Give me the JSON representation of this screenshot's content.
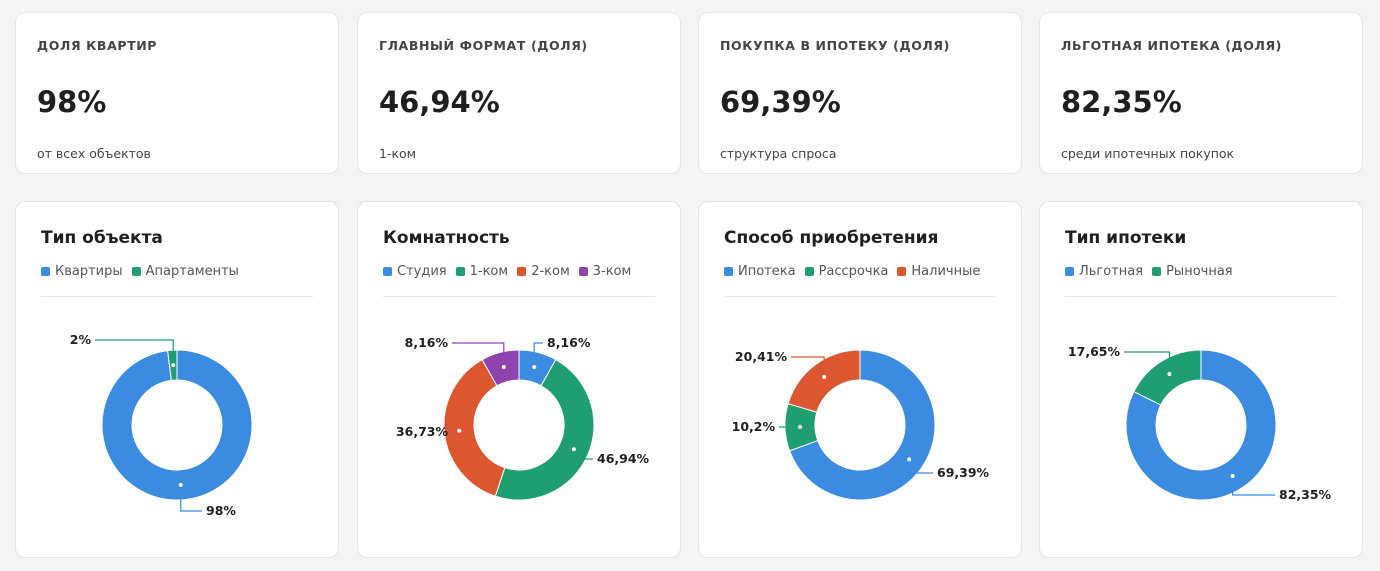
{
  "kpis": [
    {
      "title": "ДОЛЯ КВАРТИР",
      "value": "98%",
      "sub": "от всех объектов"
    },
    {
      "title": "ГЛАВНЫЙ ФОРМАТ (ДОЛЯ)",
      "value": "46,94%",
      "sub": "1-ком"
    },
    {
      "title": "ПОКУПКА В ИПОТЕКУ (ДОЛЯ)",
      "value": "69,39%",
      "sub": "структура спроса"
    },
    {
      "title": "ЛЬГОТНАЯ ИПОТЕКА (ДОЛЯ)",
      "value": "82,35%",
      "sub": "среди ипотечных покупок"
    }
  ],
  "colors": {
    "blue": "#3b8ce0",
    "green": "#1f9e72",
    "orange": "#dc5630",
    "purple": "#8e44ad"
  },
  "chart_data": [
    {
      "type": "pie",
      "donut": true,
      "title": "Тип объекта",
      "legend": [
        "Квартиры",
        "Апартаменты"
      ],
      "categories": [
        "Квартиры",
        "Апартаменты"
      ],
      "values": [
        98,
        2
      ],
      "labels": [
        "98%",
        "2%"
      ],
      "colors": [
        "#3b8ce0",
        "#1f9e72"
      ]
    },
    {
      "type": "pie",
      "donut": true,
      "title": "Комнатность",
      "legend": [
        "Студия",
        "1-ком",
        "2-ком",
        "3-ком"
      ],
      "categories": [
        "Студия",
        "1-ком",
        "2-ком",
        "3-ком"
      ],
      "values": [
        8.16,
        46.94,
        36.73,
        8.16
      ],
      "labels": [
        "8,16%",
        "46,94%",
        "36,73%",
        "8,16%"
      ],
      "colors": [
        "#3b8ce0",
        "#1f9e72",
        "#dc5630",
        "#8e44ad"
      ]
    },
    {
      "type": "pie",
      "donut": true,
      "title": "Способ приобретения",
      "legend": [
        "Ипотека",
        "Рассрочка",
        "Наличные"
      ],
      "categories": [
        "Ипотека",
        "Рассрочка",
        "Наличные"
      ],
      "values": [
        69.39,
        10.2,
        20.41
      ],
      "labels": [
        "69,39%",
        "10,2%",
        "20,41%"
      ],
      "colors": [
        "#3b8ce0",
        "#1f9e72",
        "#dc5630"
      ]
    },
    {
      "type": "pie",
      "donut": true,
      "title": "Тип ипотеки",
      "legend": [
        "Льготная",
        "Рыночная"
      ],
      "categories": [
        "Льготная",
        "Рыночная"
      ],
      "values": [
        82.35,
        17.65
      ],
      "labels": [
        "82,35%",
        "17,65%"
      ],
      "colors": [
        "#3b8ce0",
        "#1f9e72"
      ]
    }
  ]
}
